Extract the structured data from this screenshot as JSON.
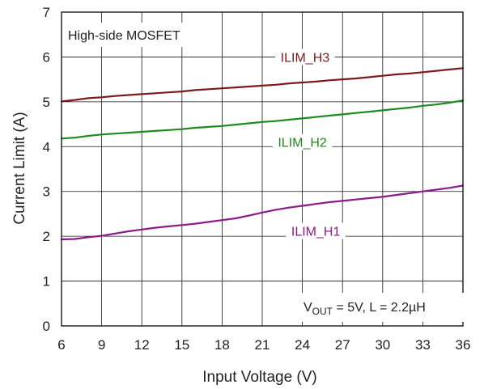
{
  "chart_data": {
    "type": "line",
    "xlabel": "Input Voltage (V)",
    "ylabel": "Current Limit (A)",
    "xlim": [
      6,
      36
    ],
    "ylim": [
      0,
      7
    ],
    "xticks": [
      6,
      9,
      12,
      15,
      18,
      21,
      24,
      27,
      30,
      33,
      36
    ],
    "yticks": [
      0,
      1,
      2,
      3,
      4,
      5,
      6,
      7
    ],
    "grid": true,
    "annotations": {
      "top_left": "High-side MOSFET",
      "bottom_right": {
        "prefix": "V",
        "subscript": "OUT",
        "rest": " = 5V, L = 2.2µH"
      }
    },
    "series": [
      {
        "name": "ILIM_H3",
        "color": "#7b1b1b",
        "x": [
          6,
          7,
          8,
          9,
          10,
          11,
          12,
          13,
          14,
          15,
          16,
          17,
          18,
          19,
          20,
          21,
          22,
          23,
          24,
          25,
          26,
          27,
          28,
          29,
          30,
          31,
          32,
          33,
          34,
          35,
          36
        ],
        "y": [
          5.01,
          5.04,
          5.08,
          5.1,
          5.13,
          5.15,
          5.17,
          5.19,
          5.21,
          5.23,
          5.26,
          5.28,
          5.3,
          5.32,
          5.34,
          5.36,
          5.38,
          5.41,
          5.43,
          5.45,
          5.48,
          5.5,
          5.52,
          5.55,
          5.58,
          5.61,
          5.63,
          5.66,
          5.69,
          5.72,
          5.75
        ]
      },
      {
        "name": "ILIM_H2",
        "color": "#1f8a1f",
        "x": [
          6,
          7,
          8,
          9,
          10,
          11,
          12,
          13,
          14,
          15,
          16,
          17,
          18,
          19,
          20,
          21,
          22,
          23,
          24,
          25,
          26,
          27,
          28,
          29,
          30,
          31,
          32,
          33,
          34,
          35,
          36
        ],
        "y": [
          4.18,
          4.2,
          4.24,
          4.27,
          4.29,
          4.31,
          4.33,
          4.35,
          4.37,
          4.39,
          4.42,
          4.44,
          4.46,
          4.49,
          4.52,
          4.55,
          4.57,
          4.6,
          4.63,
          4.66,
          4.69,
          4.72,
          4.75,
          4.78,
          4.81,
          4.84,
          4.87,
          4.91,
          4.94,
          4.98,
          5.03
        ]
      },
      {
        "name": "ILIM_H1",
        "color": "#8b1a8b",
        "x": [
          6,
          7,
          8,
          9,
          10,
          11,
          12,
          13,
          14,
          15,
          16,
          17,
          18,
          19,
          20,
          21,
          22,
          23,
          24,
          25,
          26,
          27,
          28,
          29,
          30,
          31,
          32,
          33,
          34,
          35,
          36
        ],
        "y": [
          1.93,
          1.94,
          1.98,
          2.01,
          2.06,
          2.11,
          2.15,
          2.19,
          2.22,
          2.25,
          2.28,
          2.32,
          2.36,
          2.4,
          2.46,
          2.53,
          2.59,
          2.64,
          2.68,
          2.72,
          2.76,
          2.79,
          2.82,
          2.85,
          2.88,
          2.92,
          2.96,
          3.0,
          3.04,
          3.08,
          3.13
        ]
      }
    ]
  }
}
